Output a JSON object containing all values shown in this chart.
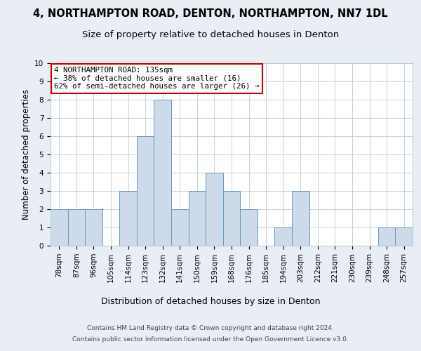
{
  "title_line1": "4, NORTHAMPTON ROAD, DENTON, NORTHAMPTON, NN7 1DL",
  "title_line2": "Size of property relative to detached houses in Denton",
  "xlabel": "Distribution of detached houses by size in Denton",
  "ylabel": "Number of detached properties",
  "categories": [
    "78sqm",
    "87sqm",
    "96sqm",
    "105sqm",
    "114sqm",
    "123sqm",
    "132sqm",
    "141sqm",
    "150sqm",
    "159sqm",
    "168sqm",
    "176sqm",
    "185sqm",
    "194sqm",
    "203sqm",
    "212sqm",
    "221sqm",
    "230sqm",
    "239sqm",
    "248sqm",
    "257sqm"
  ],
  "values": [
    2,
    2,
    2,
    0,
    3,
    6,
    8,
    2,
    3,
    4,
    3,
    2,
    0,
    1,
    3,
    0,
    0,
    0,
    0,
    1,
    1
  ],
  "bar_color": "#ccdaea",
  "bar_edge_color": "#6699bb",
  "annotation_text": "4 NORTHAMPTON ROAD: 135sqm\n← 38% of detached houses are smaller (16)\n62% of semi-detached houses are larger (26) →",
  "annotation_box_color": "#ffffff",
  "annotation_box_edge_color": "#cc0000",
  "footer_line1": "Contains HM Land Registry data © Crown copyright and database right 2024.",
  "footer_line2": "Contains public sector information licensed under the Open Government Licence v3.0.",
  "ylim": [
    0,
    10
  ],
  "yticks": [
    0,
    1,
    2,
    3,
    4,
    5,
    6,
    7,
    8,
    9,
    10
  ],
  "background_color": "#e8eef4",
  "plot_background_color": "#ffffff",
  "grid_color": "#bbccd8",
  "title_fontsize": 10.5,
  "subtitle_fontsize": 9.5,
  "ylabel_fontsize": 8.5,
  "xlabel_fontsize": 9,
  "tick_fontsize": 7.5,
  "footer_fontsize": 6.5,
  "annot_fontsize": 7.8
}
